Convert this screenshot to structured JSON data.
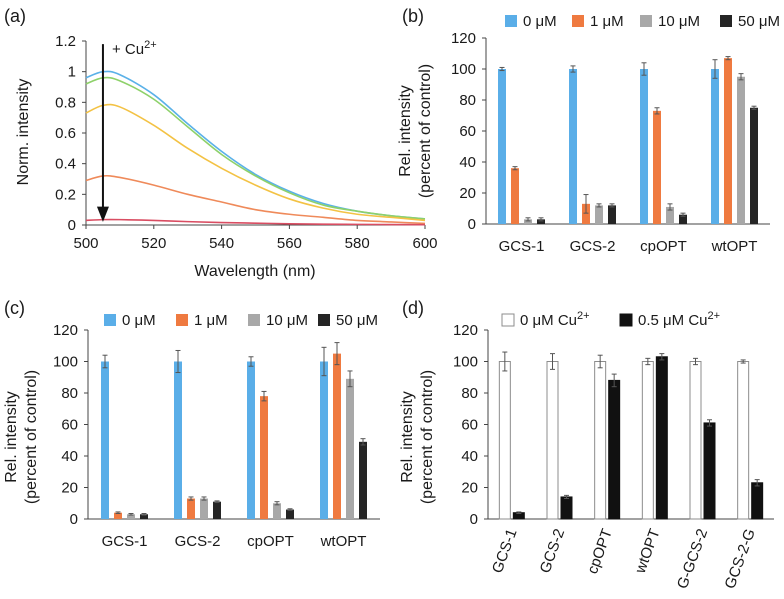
{
  "chart_data": [
    {
      "panel": "(a)",
      "type": "line",
      "xlabel": "Wavelength (nm)",
      "ylabel": "Norm. intensity",
      "xlim": [
        500,
        600
      ],
      "ylim": [
        0,
        1.2
      ],
      "xticks": [
        "500",
        "520",
        "540",
        "560",
        "580",
        "600"
      ],
      "yticks": [
        "0",
        "0.2",
        "0.4",
        "0.6",
        "0.8",
        "1",
        "1.2"
      ],
      "annotation": "+ Cu",
      "annotation_sup": "2+",
      "x": [
        500,
        505,
        510,
        520,
        530,
        540,
        550,
        560,
        570,
        580,
        590,
        600
      ],
      "series": [
        {
          "name": "curve-1",
          "color": "#5ab1e8",
          "values": [
            0.96,
            1.0,
            0.98,
            0.85,
            0.66,
            0.48,
            0.33,
            0.22,
            0.14,
            0.09,
            0.06,
            0.04
          ]
        },
        {
          "name": "curve-2",
          "color": "#8ed16a",
          "values": [
            0.92,
            0.96,
            0.94,
            0.82,
            0.64,
            0.46,
            0.32,
            0.21,
            0.13,
            0.09,
            0.06,
            0.04
          ]
        },
        {
          "name": "curve-3",
          "color": "#f3c244",
          "values": [
            0.73,
            0.78,
            0.77,
            0.65,
            0.5,
            0.37,
            0.26,
            0.17,
            0.11,
            0.07,
            0.05,
            0.03
          ]
        },
        {
          "name": "curve-4",
          "color": "#ef8a5a",
          "values": [
            0.29,
            0.32,
            0.31,
            0.26,
            0.2,
            0.15,
            0.1,
            0.07,
            0.05,
            0.03,
            0.02,
            0.01
          ]
        },
        {
          "name": "curve-5",
          "color": "#d94d62",
          "values": [
            0.03,
            0.035,
            0.035,
            0.03,
            0.022,
            0.016,
            0.012,
            0.008,
            0.005,
            0.004,
            0.003,
            0.002
          ]
        }
      ]
    },
    {
      "panel": "(b)",
      "type": "bar",
      "ylabel_lines": [
        "Rel. intensity",
        "(percent of control)"
      ],
      "ylim": [
        0,
        120
      ],
      "yticks": [
        "0",
        "20",
        "40",
        "60",
        "80",
        "100",
        "120"
      ],
      "categories": [
        "GCS-1",
        "GCS-2",
        "cpOPT",
        "wtOPT"
      ],
      "series": [
        {
          "name": "0 μM",
          "color": "#5aaee8",
          "values": [
            100,
            100,
            100,
            100
          ],
          "errors": [
            1,
            2,
            4,
            6
          ]
        },
        {
          "name": "1 μM",
          "color": "#ef7a40",
          "values": [
            36,
            13,
            73,
            107
          ],
          "errors": [
            1,
            6,
            2,
            1
          ]
        },
        {
          "name": "10 μM",
          "color": "#a8a8a8",
          "values": [
            3,
            12,
            11,
            95
          ],
          "errors": [
            1,
            1,
            2,
            2
          ]
        },
        {
          "name": "50 μM",
          "color": "#252525",
          "values": [
            3,
            12,
            6,
            75
          ],
          "errors": [
            1,
            1,
            1,
            1
          ]
        }
      ]
    },
    {
      "panel": "(c)",
      "type": "bar",
      "ylabel_lines": [
        "Rel. intensity",
        "(percent of control)"
      ],
      "ylim": [
        0,
        120
      ],
      "yticks": [
        "0",
        "20",
        "40",
        "60",
        "80",
        "100",
        "120"
      ],
      "categories": [
        "GCS-1",
        "GCS-2",
        "cpOPT",
        "wtOPT"
      ],
      "series": [
        {
          "name": "0 μM",
          "color": "#5aaee8",
          "values": [
            100,
            100,
            100,
            100
          ],
          "errors": [
            4,
            7,
            3,
            9
          ]
        },
        {
          "name": "1 μM",
          "color": "#ef7a40",
          "values": [
            4,
            13,
            78,
            105
          ],
          "errors": [
            0.5,
            1,
            3,
            7
          ]
        },
        {
          "name": "10 μM",
          "color": "#a8a8a8",
          "values": [
            3,
            13,
            10,
            89
          ],
          "errors": [
            0.5,
            1,
            1,
            5
          ]
        },
        {
          "name": "50 μM",
          "color": "#252525",
          "values": [
            3,
            11,
            6,
            49
          ],
          "errors": [
            0.5,
            0.5,
            0.5,
            2
          ]
        }
      ]
    },
    {
      "panel": "(d)",
      "type": "bar",
      "ylabel_lines": [
        "Rel. intensity",
        "(percent of control)"
      ],
      "ylim": [
        0,
        120
      ],
      "yticks": [
        "0",
        "20",
        "40",
        "60",
        "80",
        "100",
        "120"
      ],
      "categories": [
        "GCS-1",
        "GCS-2",
        "cpOPT",
        "wtOPT",
        "G-GCS-2",
        "GCS-2-G"
      ],
      "series": [
        {
          "name": "0 μM Cu",
          "sup": "2+",
          "color": "#ffffff",
          "stroke": "#8c8c8c",
          "values": [
            100,
            100,
            100,
            100,
            100,
            100
          ],
          "errors": [
            6,
            5,
            4,
            2,
            2,
            1
          ]
        },
        {
          "name": "0.5 μM Cu",
          "sup": "2+",
          "color": "#111111",
          "stroke": "#111111",
          "values": [
            4,
            14,
            88,
            103,
            61,
            23
          ],
          "errors": [
            0.5,
            1,
            4,
            2,
            2,
            2
          ]
        }
      ]
    }
  ]
}
